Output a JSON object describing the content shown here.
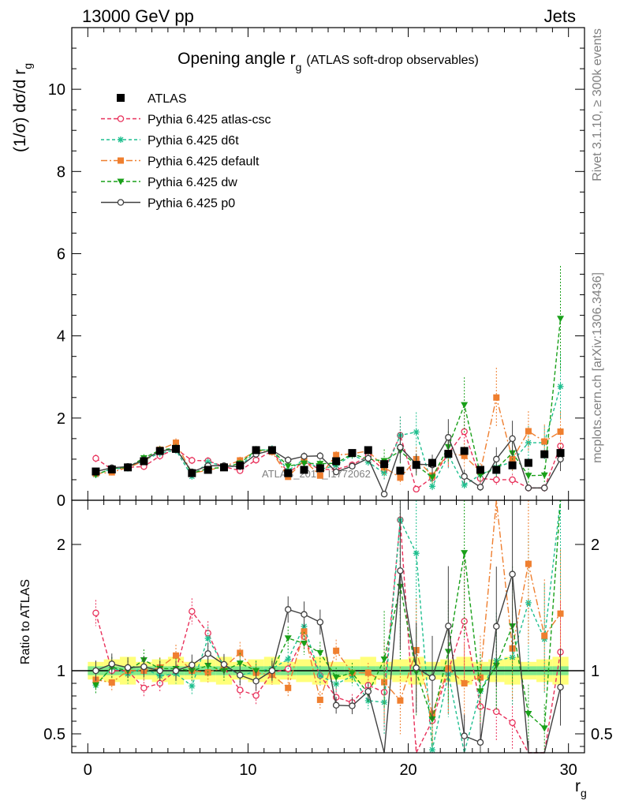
{
  "header": {
    "left": "13000 GeV pp",
    "right": "Jets"
  },
  "side_labels": {
    "rivet": "Rivet 3.1.10, ≥ 300k events",
    "mcplots": "mcplots.cern.ch [arXiv:1306.3436]"
  },
  "watermark": "ATLAS_2019_I1772062",
  "chart_data": [
    {
      "type": "line",
      "title_main": "Opening angle r",
      "title_sub": "g",
      "title_extra": "(ATLAS soft-drop observables)",
      "ylabel": "(1/σ) dσ/d r",
      "ylabel_sub": "g",
      "xlim": [
        -1,
        31
      ],
      "ylim": [
        0,
        11.5
      ],
      "yticks": [
        0,
        2,
        4,
        6,
        8,
        10
      ],
      "legend_position": "top-left",
      "x": [
        0.5,
        1.5,
        2.5,
        3.5,
        4.5,
        5.5,
        6.5,
        7.5,
        8.5,
        9.5,
        10.5,
        11.5,
        12.5,
        13.5,
        14.5,
        15.5,
        16.5,
        17.5,
        18.5,
        19.5,
        20.5,
        21.5,
        22.5,
        23.5,
        24.5,
        25.5,
        26.5,
        27.5,
        28.5,
        29.5
      ],
      "data": {
        "name": "ATLAS",
        "y": [
          0.7,
          0.75,
          0.8,
          0.95,
          1.2,
          1.25,
          0.66,
          0.74,
          0.8,
          0.85,
          1.22,
          1.22,
          0.66,
          0.74,
          0.78,
          0.95,
          1.15,
          1.22,
          0.88,
          0.72,
          0.86,
          0.91,
          1.13,
          1.2,
          0.74,
          0.74,
          0.85,
          0.91,
          1.12,
          1.15
        ]
      },
      "series": [
        {
          "name": "Pythia 6.425 atlas-csc",
          "color": "#e8305a",
          "marker": "open-circle",
          "dash": "5,3",
          "y": [
            1.02,
            0.75,
            0.8,
            0.82,
            1.08,
            1.25,
            0.97,
            0.96,
            0.82,
            0.72,
            0.98,
            1.2,
            0.67,
            0.94,
            0.75,
            0.75,
            0.86,
            1.08,
            0.73,
            1.58,
            0.27,
            0.55,
            1.13,
            1.67,
            0.53,
            0.5,
            0.5,
            0.3,
            0.3,
            1.32
          ]
        },
        {
          "name": "Pythia 6.425 d6t",
          "color": "#1fbf8f",
          "marker": "asterisk",
          "dash": "4,3",
          "y": [
            0.62,
            0.77,
            0.78,
            0.97,
            1.15,
            1.22,
            0.58,
            0.93,
            0.83,
            0.82,
            1.21,
            1.24,
            0.72,
            1.0,
            0.75,
            0.85,
            1.1,
            0.93,
            0.66,
            1.58,
            1.66,
            0.34,
            1.1,
            0.37,
            0.62,
            0.8,
            0.94,
            1.4,
            1.4,
            2.77
          ]
        },
        {
          "name": "Pythia 6.425 default",
          "color": "#ef7f2f",
          "marker": "square",
          "dash": "8,3,2,3",
          "y": [
            0.65,
            0.68,
            0.8,
            0.95,
            1.23,
            1.4,
            0.66,
            0.73,
            0.82,
            0.97,
            1.2,
            1.18,
            0.57,
            0.97,
            0.6,
            1.1,
            1.13,
            1.2,
            0.8,
            0.55,
            1.0,
            0.6,
            1.15,
            1.08,
            0.7,
            2.5,
            1.0,
            1.68,
            1.43,
            1.67
          ]
        },
        {
          "name": "Pythia 6.425 dw",
          "color": "#19a019",
          "marker": "triangle-down",
          "dash": "5,3",
          "y": [
            0.62,
            0.77,
            0.8,
            1.03,
            1.22,
            1.27,
            0.66,
            0.77,
            0.8,
            0.9,
            1.22,
            1.22,
            0.83,
            0.9,
            0.89,
            0.9,
            1.13,
            1.0,
            0.96,
            1.2,
            0.85,
            0.56,
            1.3,
            2.32,
            0.62,
            0.77,
            1.15,
            0.6,
            0.61,
            4.42
          ]
        },
        {
          "name": "Pythia 6.425 p0",
          "color": "#404040",
          "marker": "open-circle",
          "dash": "",
          "y": [
            0.7,
            0.79,
            0.82,
            0.98,
            1.2,
            1.25,
            0.69,
            0.84,
            0.84,
            0.82,
            1.12,
            1.22,
            0.98,
            1.07,
            1.08,
            0.69,
            0.83,
            1.02,
            0.15,
            1.29,
            0.88,
            0.86,
            1.53,
            0.58,
            0.32,
            1.0,
            1.5,
            0.3,
            0.3,
            1.0
          ]
        }
      ]
    },
    {
      "type": "line",
      "ylabel": "Ratio to ATLAS",
      "xlabel": "r",
      "xlabel_sub": "g",
      "xlim": [
        -1,
        31
      ],
      "ylim": [
        0.35,
        2.35
      ],
      "yticks": [
        0.5,
        1,
        2
      ],
      "xticks": [
        0,
        10,
        20,
        30
      ],
      "band_colors": [
        "#ffff7a",
        "#7fe88c"
      ]
    }
  ]
}
